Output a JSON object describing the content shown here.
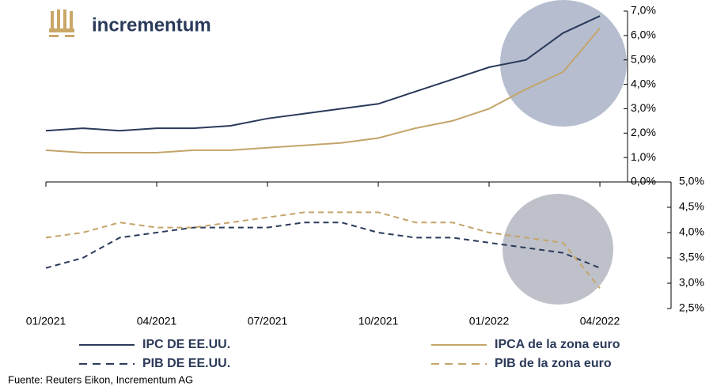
{
  "header": {
    "logo": "incrementum"
  },
  "source": "Fuente: Reuters Eikon, Incrementum AG",
  "chart_data": [
    {
      "type": "line",
      "ylim": [
        0,
        7
      ],
      "yticks": [
        {
          "value": 0,
          "label": "0,0%"
        },
        {
          "value": 1,
          "label": "1,0%"
        },
        {
          "value": 2,
          "label": "2,0%"
        },
        {
          "value": 3,
          "label": "3,0%"
        },
        {
          "value": 4,
          "label": "4,0%"
        },
        {
          "value": 5,
          "label": "5,0%"
        },
        {
          "value": 6,
          "label": "6,0%"
        },
        {
          "value": 7,
          "label": "7,0%"
        }
      ],
      "series": [
        {
          "name": "IPC DE EE.UU.",
          "color": "#2b3a5a",
          "style": "solid",
          "values": [
            2.1,
            2.2,
            2.1,
            2.2,
            2.2,
            2.3,
            2.6,
            2.8,
            3.0,
            3.2,
            3.7,
            4.2,
            4.7,
            5.0,
            6.1,
            6.8
          ]
        },
        {
          "name": "IPCA de la zona euro",
          "color": "#c4a46a",
          "style": "solid",
          "values": [
            1.3,
            1.2,
            1.2,
            1.2,
            1.3,
            1.3,
            1.4,
            1.5,
            1.6,
            1.8,
            2.2,
            2.5,
            3.0,
            3.8,
            4.5,
            6.3
          ]
        }
      ]
    },
    {
      "type": "line",
      "categories": [
        "01/2021",
        null,
        null,
        "04/2021",
        null,
        null,
        "07/2021",
        null,
        null,
        "10/2021",
        null,
        null,
        "01/2022",
        null,
        null,
        "04/2022"
      ],
      "ylim": [
        2.5,
        5
      ],
      "yticks": [
        {
          "value": 2.5,
          "label": "2,5%"
        },
        {
          "value": 3,
          "label": "3,0%"
        },
        {
          "value": 3.5,
          "label": "3,5%"
        },
        {
          "value": 4,
          "label": "4,0%"
        },
        {
          "value": 4.5,
          "label": "4,5%"
        },
        {
          "value": 5,
          "label": "5,0%"
        }
      ],
      "series": [
        {
          "name": "PIB DE EE.UU.",
          "color": "#2b3a5a",
          "style": "dashed",
          "values": [
            3.3,
            3.5,
            3.9,
            4.0,
            4.1,
            4.1,
            4.1,
            4.2,
            4.2,
            4.0,
            3.9,
            3.9,
            3.8,
            3.7,
            3.6,
            3.3
          ]
        },
        {
          "name": "PIB de la zona euro",
          "color": "#c4a46a",
          "style": "dashed",
          "values": [
            3.9,
            4.0,
            4.2,
            4.1,
            4.1,
            4.2,
            4.3,
            4.4,
            4.4,
            4.4,
            4.2,
            4.2,
            4.0,
            3.9,
            3.8,
            2.9
          ]
        }
      ]
    }
  ]
}
